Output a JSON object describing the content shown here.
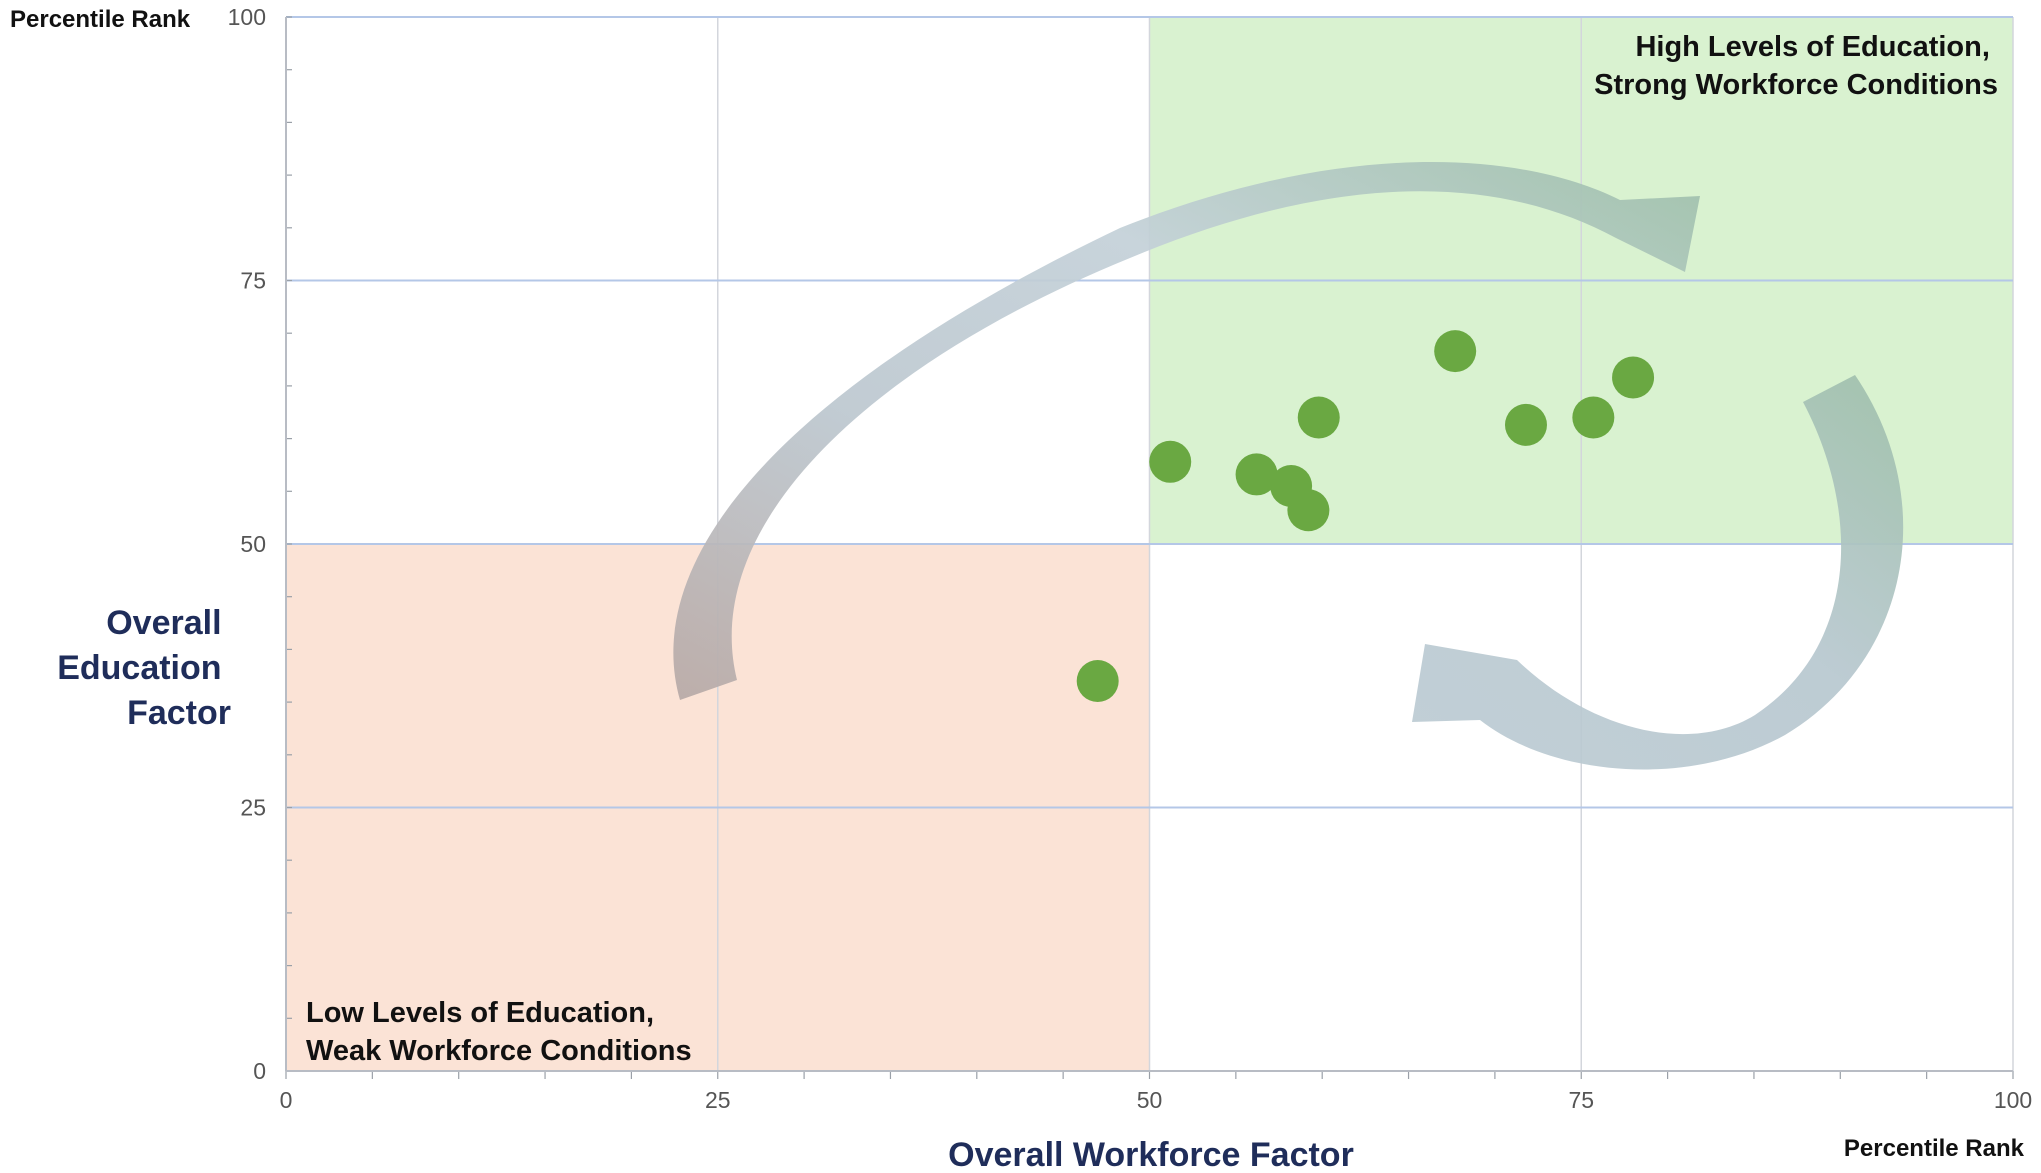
{
  "chart_data": {
    "type": "scatter",
    "xlabel": "Overall Workforce Factor",
    "ylabel_lines": [
      "Overall",
      "Education",
      "Factor"
    ],
    "x_unit_label": "Percentile Rank",
    "y_unit_label": "Percentile Rank",
    "xlim": [
      0,
      100
    ],
    "ylim": [
      0,
      100
    ],
    "x_ticks": [
      "0",
      "25",
      "50",
      "75",
      "100"
    ],
    "y_ticks": [
      "0",
      "25",
      "50",
      "75",
      "100"
    ],
    "grid": true,
    "points": [
      {
        "x": 47,
        "y": 37
      },
      {
        "x": 51.2,
        "y": 57.8
      },
      {
        "x": 56.2,
        "y": 56.6
      },
      {
        "x": 58.2,
        "y": 55.5
      },
      {
        "x": 59.2,
        "y": 53.2
      },
      {
        "x": 59.8,
        "y": 62
      },
      {
        "x": 67.7,
        "y": 68.3
      },
      {
        "x": 71.8,
        "y": 61.3
      },
      {
        "x": 75.7,
        "y": 62
      },
      {
        "x": 78,
        "y": 65.8
      }
    ],
    "quadrants": [
      {
        "name": "high",
        "lines": [
          "High Levels of Education,",
          "Strong Workforce Conditions"
        ],
        "x_range": [
          50,
          100
        ],
        "y_range": [
          50,
          100
        ],
        "color": "#d9f2d0"
      },
      {
        "name": "low",
        "lines": [
          "Low Levels of Education,",
          "Weak Workforce Conditions"
        ],
        "x_range": [
          0,
          50
        ],
        "y_range": [
          0,
          50
        ],
        "color": "#fbe3d6"
      }
    ],
    "colors": {
      "point": "#6aa842",
      "gridline": "#b4c7e7",
      "arrow": "#a9bfc9"
    }
  }
}
